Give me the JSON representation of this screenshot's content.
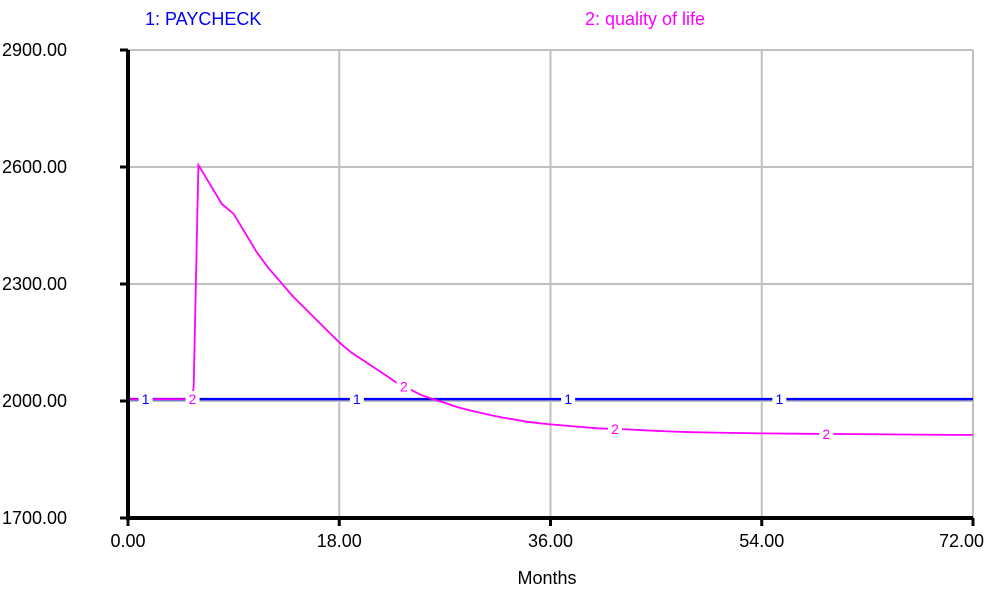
{
  "chart_data": {
    "type": "line",
    "title": "",
    "xlabel": "Months",
    "ylabel": "",
    "xlim": [
      0,
      72
    ],
    "ylim": [
      1700,
      2900
    ],
    "x_ticks": [
      0,
      18,
      36,
      54,
      72
    ],
    "x_tick_labels": [
      "0.00",
      "18.00",
      "36.00",
      "54.00",
      "72.00"
    ],
    "y_ticks": [
      1700,
      2000,
      2300,
      2600,
      2900
    ],
    "y_tick_labels": [
      "1700.00",
      "2000.00",
      "2300.00",
      "2600.00",
      "2900.00"
    ],
    "grid": true,
    "legend_placement": "top",
    "series": [
      {
        "name": "1: PAYCHECK",
        "marker": "1",
        "color": "#0000ff",
        "marker_x": [
          1.5,
          19.5,
          37.5,
          55.5
        ],
        "points": [
          [
            0,
            2005
          ],
          [
            72,
            2005
          ]
        ]
      },
      {
        "name": "2: quality of life",
        "marker": "2",
        "color": "#ff00ff",
        "marker_x": [
          5.5,
          23.5,
          41.5,
          59.5
        ],
        "points": [
          [
            0,
            2005
          ],
          [
            5.5,
            2005
          ],
          [
            5.6,
            2040
          ],
          [
            6,
            2605
          ],
          [
            6.5,
            2580
          ],
          [
            7,
            2555
          ],
          [
            7.5,
            2530
          ],
          [
            8,
            2505
          ],
          [
            9,
            2480
          ],
          [
            10,
            2430
          ],
          [
            11,
            2380
          ],
          [
            12,
            2340
          ],
          [
            13,
            2305
          ],
          [
            14,
            2270
          ],
          [
            15,
            2240
          ],
          [
            16,
            2210
          ],
          [
            17,
            2180
          ],
          [
            18,
            2150
          ],
          [
            19,
            2125
          ],
          [
            20,
            2105
          ],
          [
            21,
            2085
          ],
          [
            22,
            2065
          ],
          [
            23,
            2045
          ],
          [
            24,
            2030
          ],
          [
            25,
            2015
          ],
          [
            26,
            2005
          ],
          [
            27,
            1995
          ],
          [
            28,
            1985
          ],
          [
            29,
            1977
          ],
          [
            30,
            1970
          ],
          [
            31,
            1963
          ],
          [
            32,
            1957
          ],
          [
            33,
            1952
          ],
          [
            34,
            1947
          ],
          [
            35,
            1943
          ],
          [
            36,
            1940
          ],
          [
            38,
            1935
          ],
          [
            40,
            1930
          ],
          [
            42,
            1928
          ],
          [
            44,
            1925
          ],
          [
            46,
            1922
          ],
          [
            48,
            1920
          ],
          [
            50,
            1919
          ],
          [
            54,
            1917
          ],
          [
            58,
            1916
          ],
          [
            62,
            1915
          ],
          [
            66,
            1914
          ],
          [
            70,
            1913
          ],
          [
            72,
            1913
          ]
        ]
      }
    ]
  }
}
